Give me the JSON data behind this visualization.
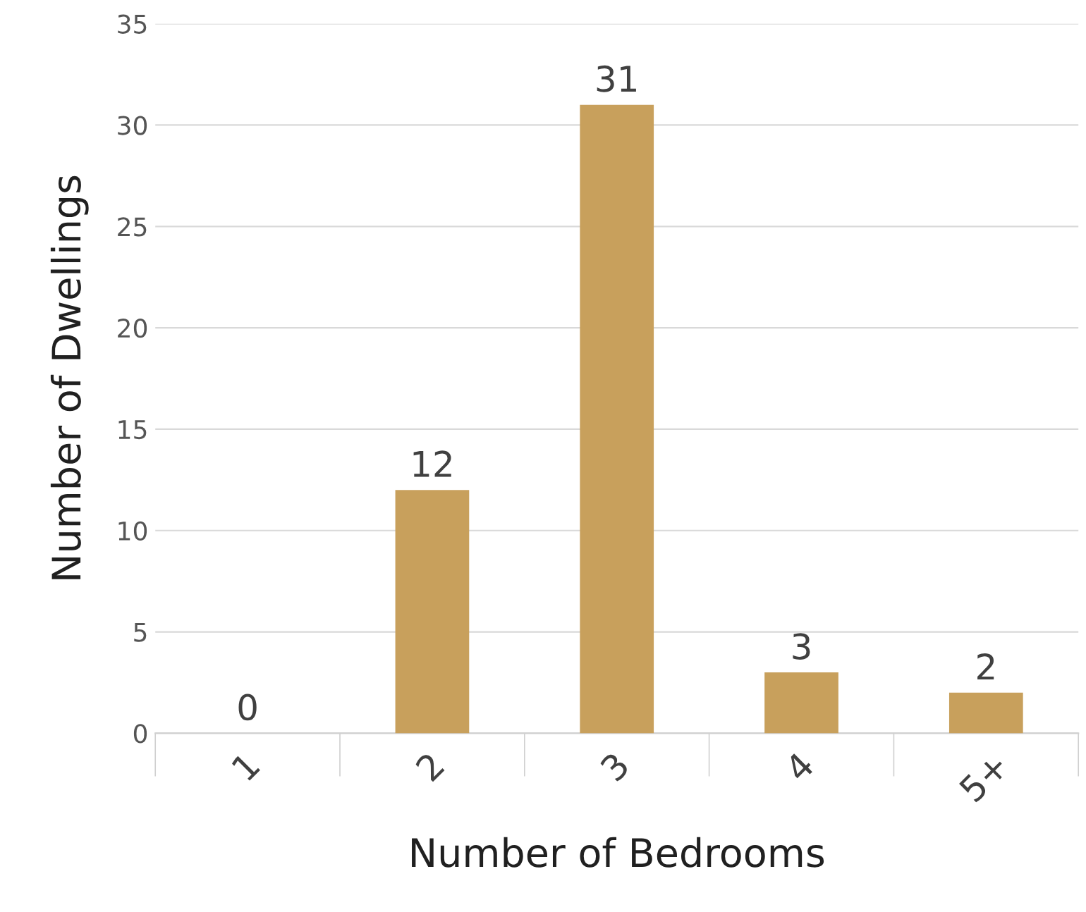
{
  "chart_data": {
    "type": "bar",
    "xlabel": "Number of Bedrooms",
    "ylabel": "Number of Dwellings",
    "categories": [
      "1",
      "2",
      "3",
      "4",
      "5+"
    ],
    "values": [
      0,
      12,
      31,
      3,
      2
    ],
    "color": "#c8a05c",
    "ylim": [
      0,
      35
    ],
    "yticks": [
      0,
      5,
      10,
      15,
      20,
      25,
      30,
      35
    ],
    "grid": "y",
    "data_labels": true,
    "legend": false
  }
}
